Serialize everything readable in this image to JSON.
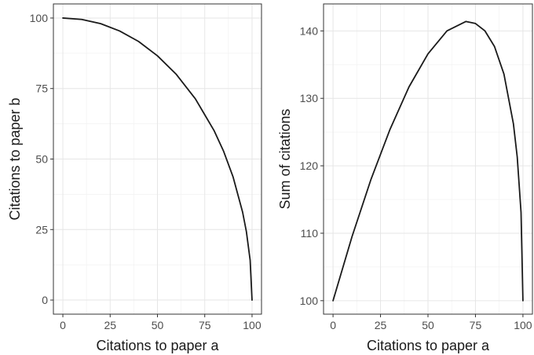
{
  "chart_data": [
    {
      "type": "line",
      "xlabel": "Citations to paper a",
      "ylabel": "Citations to paper b",
      "xlim": [
        -5,
        105
      ],
      "ylim": [
        -5,
        105
      ],
      "x_ticks": [
        0,
        25,
        50,
        75,
        100
      ],
      "y_ticks": [
        0,
        25,
        50,
        75,
        100
      ],
      "grid": true,
      "series": [
        {
          "x": [
            0,
            10,
            20,
            30,
            40,
            50,
            60,
            70,
            80,
            85,
            90,
            95,
            97,
            99,
            100
          ],
          "y": [
            100,
            99.5,
            98.0,
            95.4,
            91.7,
            86.6,
            80.0,
            71.4,
            60.0,
            52.7,
            43.6,
            31.2,
            24.3,
            14.1,
            0
          ]
        }
      ]
    },
    {
      "type": "line",
      "xlabel": "Citations to paper a",
      "ylabel": "Sum of citations",
      "xlim": [
        -5,
        105
      ],
      "ylim": [
        98,
        144
      ],
      "x_ticks": [
        0,
        25,
        50,
        75,
        100
      ],
      "y_ticks": [
        100,
        110,
        120,
        130,
        140
      ],
      "grid": true,
      "series": [
        {
          "x": [
            0,
            10,
            20,
            30,
            40,
            50,
            60,
            70,
            75,
            80,
            85,
            90,
            95,
            97,
            99,
            100
          ],
          "y": [
            100,
            109.5,
            118.0,
            125.4,
            131.7,
            136.6,
            140.0,
            141.4,
            141.1,
            140.0,
            137.7,
            133.6,
            126.2,
            121.3,
            113.1,
            100
          ]
        }
      ]
    }
  ]
}
